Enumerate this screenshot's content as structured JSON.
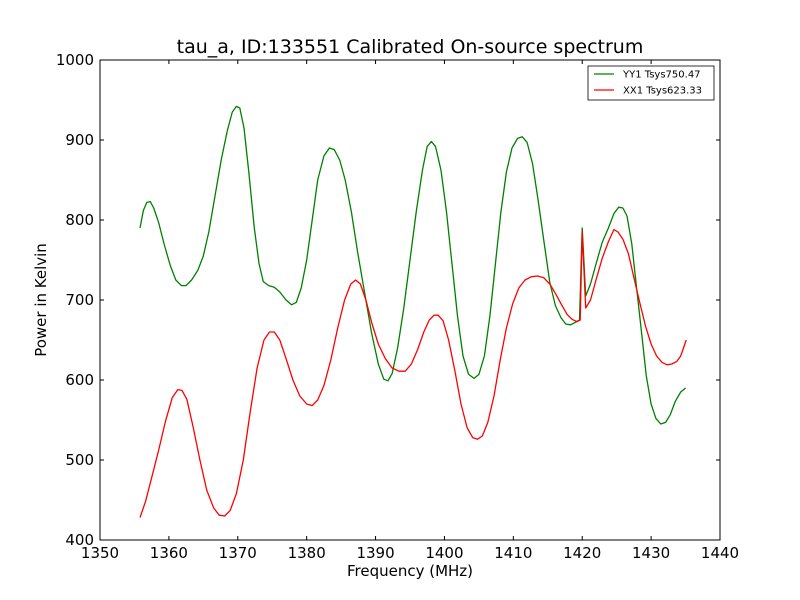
{
  "chart_data": {
    "type": "line",
    "title": "tau_a, ID:133551 Calibrated On-source spectrum",
    "xlabel": "Frequency (MHz)",
    "ylabel": "Power in Kelvin",
    "xlim": [
      1350,
      1440
    ],
    "ylim": [
      400,
      1000
    ],
    "xticks": [
      1350,
      1360,
      1370,
      1380,
      1390,
      1400,
      1410,
      1420,
      1430,
      1440
    ],
    "yticks": [
      400,
      500,
      600,
      700,
      800,
      900,
      1000
    ],
    "grid": false,
    "legend_position": "top-right",
    "series": [
      {
        "name": "YY1 Tsys750.47",
        "color": "#008000",
        "points": [
          [
            1355.8,
            790
          ],
          [
            1356.3,
            812
          ],
          [
            1356.8,
            822
          ],
          [
            1357.3,
            823
          ],
          [
            1357.8,
            815
          ],
          [
            1358.5,
            797
          ],
          [
            1359.3,
            770
          ],
          [
            1360.2,
            743
          ],
          [
            1361.0,
            725
          ],
          [
            1361.8,
            718
          ],
          [
            1362.5,
            718
          ],
          [
            1363.3,
            725
          ],
          [
            1364.2,
            737
          ],
          [
            1365.0,
            755
          ],
          [
            1365.8,
            785
          ],
          [
            1366.7,
            830
          ],
          [
            1367.6,
            875
          ],
          [
            1368.5,
            912
          ],
          [
            1369.2,
            935
          ],
          [
            1369.8,
            942
          ],
          [
            1370.3,
            940
          ],
          [
            1370.9,
            915
          ],
          [
            1371.6,
            860
          ],
          [
            1372.4,
            790
          ],
          [
            1373.1,
            745
          ],
          [
            1373.7,
            723
          ],
          [
            1374.5,
            718
          ],
          [
            1375.3,
            716
          ],
          [
            1376.1,
            710
          ],
          [
            1377.0,
            700
          ],
          [
            1377.8,
            694
          ],
          [
            1378.5,
            697
          ],
          [
            1379.2,
            715
          ],
          [
            1380.0,
            750
          ],
          [
            1380.8,
            800
          ],
          [
            1381.6,
            850
          ],
          [
            1382.5,
            880
          ],
          [
            1383.3,
            890
          ],
          [
            1384.0,
            888
          ],
          [
            1384.8,
            875
          ],
          [
            1385.6,
            850
          ],
          [
            1386.5,
            810
          ],
          [
            1387.4,
            760
          ],
          [
            1388.4,
            710
          ],
          [
            1389.4,
            660
          ],
          [
            1390.4,
            620
          ],
          [
            1391.2,
            601
          ],
          [
            1391.8,
            599
          ],
          [
            1392.4,
            608
          ],
          [
            1393.2,
            640
          ],
          [
            1394.1,
            690
          ],
          [
            1395.0,
            750
          ],
          [
            1395.9,
            810
          ],
          [
            1396.8,
            862
          ],
          [
            1397.5,
            892
          ],
          [
            1398.1,
            898
          ],
          [
            1398.7,
            892
          ],
          [
            1399.5,
            862
          ],
          [
            1400.3,
            810
          ],
          [
            1401.1,
            745
          ],
          [
            1401.9,
            680
          ],
          [
            1402.7,
            630
          ],
          [
            1403.5,
            607
          ],
          [
            1404.3,
            602
          ],
          [
            1405.0,
            607
          ],
          [
            1405.8,
            630
          ],
          [
            1406.6,
            680
          ],
          [
            1407.4,
            745
          ],
          [
            1408.2,
            810
          ],
          [
            1409.0,
            860
          ],
          [
            1409.8,
            890
          ],
          [
            1410.6,
            902
          ],
          [
            1411.3,
            904
          ],
          [
            1412.0,
            897
          ],
          [
            1412.8,
            870
          ],
          [
            1413.6,
            825
          ],
          [
            1414.5,
            770
          ],
          [
            1415.3,
            722
          ],
          [
            1416.1,
            693
          ],
          [
            1416.9,
            678
          ],
          [
            1417.6,
            670
          ],
          [
            1418.3,
            669
          ],
          [
            1419.0,
            672
          ],
          [
            1419.6,
            675
          ],
          [
            1420.0,
            790
          ],
          [
            1420.5,
            705
          ],
          [
            1421.2,
            720
          ],
          [
            1422.0,
            745
          ],
          [
            1422.9,
            772
          ],
          [
            1423.8,
            790
          ],
          [
            1424.6,
            808
          ],
          [
            1425.3,
            816
          ],
          [
            1425.9,
            815
          ],
          [
            1426.5,
            805
          ],
          [
            1427.2,
            770
          ],
          [
            1427.9,
            715
          ],
          [
            1428.6,
            660
          ],
          [
            1429.3,
            605
          ],
          [
            1430.0,
            570
          ],
          [
            1430.7,
            552
          ],
          [
            1431.4,
            545
          ],
          [
            1432.1,
            547
          ],
          [
            1432.8,
            557
          ],
          [
            1433.5,
            573
          ],
          [
            1434.3,
            585
          ],
          [
            1435.0,
            590
          ]
        ]
      },
      {
        "name": "XX1 Tsys623.33",
        "color": "#ff0000",
        "points": [
          [
            1355.8,
            428
          ],
          [
            1356.6,
            448
          ],
          [
            1357.5,
            478
          ],
          [
            1358.5,
            512
          ],
          [
            1359.5,
            548
          ],
          [
            1360.5,
            578
          ],
          [
            1361.3,
            588
          ],
          [
            1361.9,
            587
          ],
          [
            1362.6,
            576
          ],
          [
            1363.5,
            542
          ],
          [
            1364.5,
            500
          ],
          [
            1365.5,
            462
          ],
          [
            1366.5,
            440
          ],
          [
            1367.3,
            431
          ],
          [
            1368.1,
            430
          ],
          [
            1368.9,
            437
          ],
          [
            1369.8,
            458
          ],
          [
            1370.8,
            500
          ],
          [
            1371.8,
            560
          ],
          [
            1372.8,
            615
          ],
          [
            1373.8,
            650
          ],
          [
            1374.6,
            660
          ],
          [
            1375.3,
            660
          ],
          [
            1376.1,
            650
          ],
          [
            1377.0,
            627
          ],
          [
            1378.0,
            600
          ],
          [
            1379.0,
            580
          ],
          [
            1380.0,
            570
          ],
          [
            1380.8,
            568
          ],
          [
            1381.6,
            575
          ],
          [
            1382.5,
            593
          ],
          [
            1383.5,
            625
          ],
          [
            1384.5,
            665
          ],
          [
            1385.5,
            700
          ],
          [
            1386.4,
            720
          ],
          [
            1387.1,
            725
          ],
          [
            1387.8,
            720
          ],
          [
            1388.6,
            700
          ],
          [
            1389.5,
            670
          ],
          [
            1390.4,
            645
          ],
          [
            1391.4,
            627
          ],
          [
            1392.4,
            615
          ],
          [
            1393.4,
            611
          ],
          [
            1394.3,
            611
          ],
          [
            1395.2,
            620
          ],
          [
            1396.1,
            638
          ],
          [
            1397.0,
            660
          ],
          [
            1397.8,
            675
          ],
          [
            1398.5,
            681
          ],
          [
            1399.1,
            681
          ],
          [
            1399.8,
            674
          ],
          [
            1400.6,
            650
          ],
          [
            1401.5,
            612
          ],
          [
            1402.4,
            570
          ],
          [
            1403.3,
            540
          ],
          [
            1404.1,
            528
          ],
          [
            1404.8,
            526
          ],
          [
            1405.5,
            530
          ],
          [
            1406.3,
            547
          ],
          [
            1407.2,
            580
          ],
          [
            1408.1,
            625
          ],
          [
            1409.0,
            665
          ],
          [
            1409.9,
            695
          ],
          [
            1410.8,
            715
          ],
          [
            1411.7,
            725
          ],
          [
            1412.6,
            729
          ],
          [
            1413.5,
            730
          ],
          [
            1414.4,
            728
          ],
          [
            1415.3,
            720
          ],
          [
            1416.2,
            707
          ],
          [
            1417.0,
            694
          ],
          [
            1417.8,
            682
          ],
          [
            1418.5,
            676
          ],
          [
            1419.2,
            673
          ],
          [
            1419.7,
            675
          ],
          [
            1420.0,
            785
          ],
          [
            1420.5,
            690
          ],
          [
            1421.2,
            700
          ],
          [
            1422.0,
            725
          ],
          [
            1422.9,
            752
          ],
          [
            1423.8,
            773
          ],
          [
            1424.6,
            788
          ],
          [
            1425.2,
            785
          ],
          [
            1425.9,
            776
          ],
          [
            1426.7,
            758
          ],
          [
            1427.5,
            728
          ],
          [
            1428.4,
            695
          ],
          [
            1429.2,
            667
          ],
          [
            1430.0,
            645
          ],
          [
            1430.8,
            630
          ],
          [
            1431.6,
            622
          ],
          [
            1432.3,
            619
          ],
          [
            1433.0,
            620
          ],
          [
            1433.7,
            623
          ],
          [
            1434.3,
            630
          ],
          [
            1434.7,
            640
          ],
          [
            1435.1,
            650
          ]
        ]
      }
    ]
  }
}
